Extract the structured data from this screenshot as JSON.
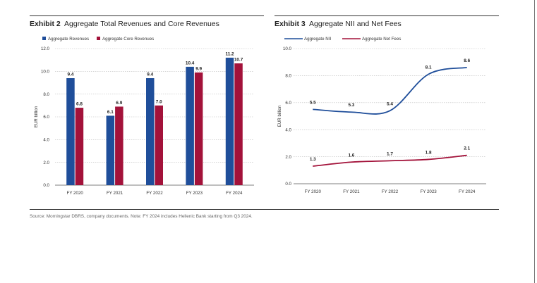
{
  "exhibit2": {
    "label": "Exhibit 2",
    "title": "Aggregate Total Revenues and Core Revenues"
  },
  "exhibit3": {
    "label": "Exhibit 3",
    "title": "Aggregate NII and Net Fees"
  },
  "source_note": "Source: Morningstar DBRS, company documents. Note: FY 2024 includes Hellenic Bank starting from Q3 2024.",
  "colors": {
    "blue": "#1f4e9a",
    "red": "#a3123a",
    "grid": "#bdbdbd",
    "axis": "#555555"
  },
  "chart_data": [
    {
      "type": "bar",
      "title": "Aggregate Total Revenues and Core Revenues",
      "ylabel": "EUR billion",
      "xlabel": "",
      "ylim": [
        0,
        12
      ],
      "yticks": [
        "0.0",
        "2.0",
        "4.0",
        "6.0",
        "8.0",
        "10.0",
        "12.0"
      ],
      "grid": true,
      "legend": "top-left",
      "categories": [
        "FY 2020",
        "FY 2021",
        "FY 2022",
        "FY 2023",
        "FY 2024"
      ],
      "series": [
        {
          "name": "Aggregate Revenues",
          "color": "#1f4e9a",
          "values": [
            9.4,
            6.1,
            9.4,
            10.4,
            11.2
          ],
          "labels": [
            "9.4",
            "6.1",
            "9.4",
            "10.4",
            "11.2"
          ]
        },
        {
          "name": "Aggregate Core Revenues",
          "color": "#a3123a",
          "values": [
            6.8,
            6.9,
            7.0,
            9.9,
            10.7
          ],
          "labels": [
            "6.8",
            "6.9",
            "7.0",
            "9.9",
            "10.7"
          ]
        }
      ]
    },
    {
      "type": "line",
      "title": "Aggregate NII and Net Fees",
      "ylabel": "EUR billion",
      "xlabel": "",
      "ylim": [
        0,
        10
      ],
      "yticks": [
        "0.0",
        "2.0",
        "4.0",
        "6.0",
        "8.0",
        "10.0"
      ],
      "grid": true,
      "legend": "top-left",
      "categories": [
        "FY 2020",
        "FY 2021",
        "FY 2022",
        "FY 2023",
        "FY 2024"
      ],
      "series": [
        {
          "name": "Aggregate NII",
          "color": "#1f4e9a",
          "values": [
            5.5,
            5.3,
            5.4,
            8.1,
            8.6
          ],
          "labels": [
            "5.5",
            "5.3",
            "5.4",
            "8.1",
            "8.6"
          ]
        },
        {
          "name": "Aggregate Net Fees",
          "color": "#a3123a",
          "values": [
            1.3,
            1.6,
            1.7,
            1.8,
            2.1
          ],
          "labels": [
            "1.3",
            "1.6",
            "1.7",
            "1.8",
            "2.1"
          ]
        }
      ]
    }
  ]
}
